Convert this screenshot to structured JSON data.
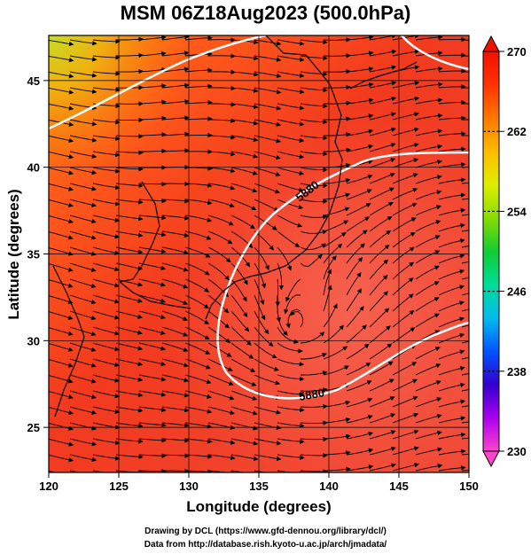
{
  "title": "MSM 06Z18Aug2023 (500.0hPa)",
  "x_axis": {
    "label": "Longitude (degrees)",
    "range": [
      120,
      150
    ],
    "ticks": [
      "120",
      "125",
      "130",
      "135",
      "140",
      "145",
      "150"
    ]
  },
  "y_axis": {
    "label": "Latitude  (degrees)",
    "range": [
      22.4,
      47.6
    ],
    "ticks": [
      "25",
      "30",
      "35",
      "40",
      "45"
    ]
  },
  "colorbar": {
    "range": [
      230,
      270
    ],
    "ticks": [
      "230",
      "238",
      "246",
      "254",
      "262",
      "270"
    ],
    "colors": [
      "#ff44cc",
      "#aa00ee",
      "#3300cc",
      "#0055ff",
      "#00bbee",
      "#00dd99",
      "#11cc33",
      "#88dd00",
      "#ddee00",
      "#ffbb00",
      "#ff7700",
      "#ff3300",
      "#ee1100"
    ]
  },
  "contour_labels": [
    "5880",
    "5880"
  ],
  "credits": {
    "line1": "Drawing by DCL (https://www.gfd-dennou.org/library/dcl/)",
    "line2": "Data from http://database.rish.kyoto-u.ac.jp/arch/jmadata/"
  }
}
